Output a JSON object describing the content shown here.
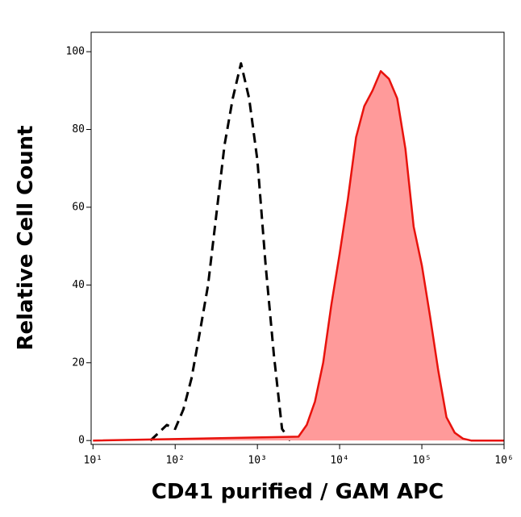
{
  "chart_data": {
    "type": "line",
    "xlabel": "CD41 purified / GAM APC",
    "ylabel": "Relative Cell Count",
    "xscale": "log",
    "xlim": [
      9.5,
      1000000
    ],
    "ylim": [
      -1,
      105
    ],
    "xticks": [
      {
        "value": 10,
        "label": "10¹"
      },
      {
        "value": 100,
        "label": "10²"
      },
      {
        "value": 1000,
        "label": "10³"
      },
      {
        "value": 10000,
        "label": "10⁴"
      },
      {
        "value": 100000,
        "label": "10⁵"
      },
      {
        "value": 1000000,
        "label": "10⁶"
      }
    ],
    "yticks": [
      0,
      20,
      40,
      60,
      80,
      100
    ],
    "series": [
      {
        "color": "#000000",
        "dashed": true,
        "x": [
          50,
          63,
          79,
          100,
          126,
          158,
          200,
          251,
          316,
          398,
          501,
          631,
          794,
          1000,
          1259,
          1585,
          1995,
          2512
        ],
        "values": [
          0,
          2,
          4,
          3,
          8,
          16,
          28,
          40,
          58,
          76,
          88,
          97,
          88,
          72,
          45,
          22,
          3,
          0
        ]
      },
      {
        "color": "#e8120c",
        "fill": "#ff9a9a",
        "x": [
          10,
          3162,
          3981,
          5012,
          6310,
          7943,
          10000,
          12589,
          15849,
          19953,
          25119,
          31623,
          39811,
          50119,
          63096,
          79433,
          100000,
          125893,
          158489,
          199526,
          251189,
          316228,
          398107,
          1000000
        ],
        "values": [
          0,
          1,
          4,
          10,
          20,
          35,
          48,
          62,
          78,
          86,
          90,
          95,
          93,
          88,
          75,
          55,
          45,
          32,
          18,
          6,
          2,
          0.5,
          0,
          0
        ]
      }
    ]
  }
}
